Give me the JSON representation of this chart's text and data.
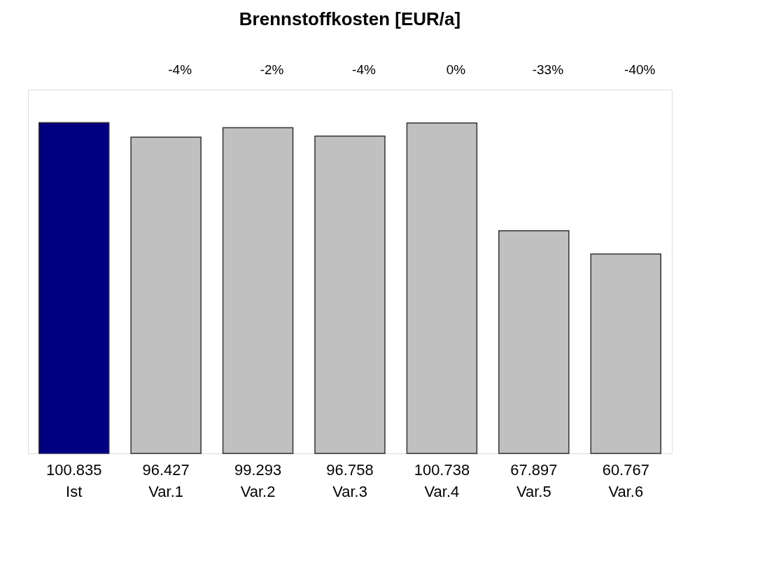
{
  "chart_data": {
    "type": "bar",
    "title": "Brennstoffkosten  [EUR/a]",
    "categories": [
      "Ist",
      "Var.1",
      "Var.2",
      "Var.3",
      "Var.4",
      "Var.5",
      "Var.6"
    ],
    "values": [
      100835,
      96427,
      99293,
      96758,
      100738,
      67897,
      60767
    ],
    "value_labels": [
      "100.835",
      "96.427",
      "99.293",
      "96.758",
      "100.738",
      "67.897",
      "60.767"
    ],
    "colors": [
      "#000080",
      "#c0c0c0",
      "#c0c0c0",
      "#c0c0c0",
      "#c0c0c0",
      "#c0c0c0",
      "#c0c0c0"
    ],
    "annotations": [
      "-4%",
      "-2%",
      "-4%",
      "0%",
      "-33%",
      "-40%"
    ]
  }
}
